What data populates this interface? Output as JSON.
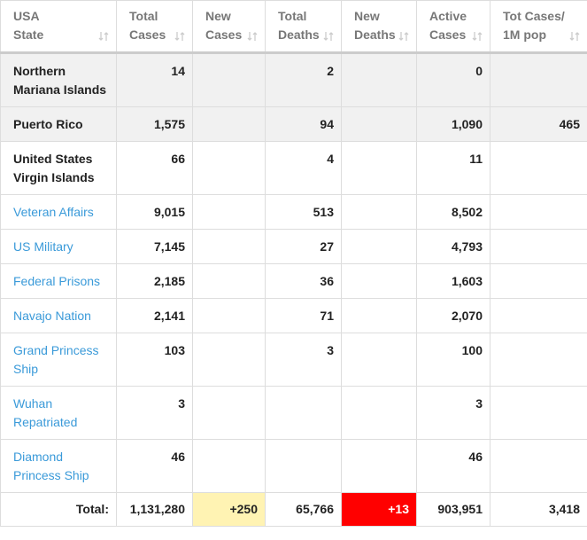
{
  "table": {
    "headers": [
      "USA\nState",
      "Total\nCases",
      "New\nCases",
      "Total\nDeaths",
      "New\nDeaths",
      "Active\nCases",
      "Tot Cases/\n1M pop"
    ],
    "header_color": "#777777",
    "border_color": "#dddddd",
    "rows": [
      {
        "cells": [
          "Northern Mariana Islands",
          "14",
          null,
          "2",
          null,
          "0",
          null
        ],
        "background": "#f1f1f1",
        "name_color": "#222222"
      },
      {
        "cells": [
          "Puerto Rico",
          "1,575",
          null,
          "94",
          null,
          "1,090",
          "465"
        ],
        "background": "#f1f1f1",
        "name_color": "#222222"
      },
      {
        "cells": [
          "United States Virgin Islands",
          "66",
          null,
          "4",
          null,
          "11",
          null
        ],
        "background": "#ffffff",
        "name_color": "#222222"
      },
      {
        "cells": [
          "Veteran Affairs",
          "9,015",
          null,
          "513",
          null,
          "8,502",
          null
        ],
        "background": "#ffffff",
        "name_color": "#3a9ad9"
      },
      {
        "cells": [
          "US Military",
          "7,145",
          null,
          "27",
          null,
          "4,793",
          null
        ],
        "background": "#ffffff",
        "name_color": "#3a9ad9"
      },
      {
        "cells": [
          "Federal Prisons",
          "2,185",
          null,
          "36",
          null,
          "1,603",
          null
        ],
        "background": "#ffffff",
        "name_color": "#3a9ad9"
      },
      {
        "cells": [
          "Navajo Nation",
          "2,141",
          null,
          "71",
          null,
          "2,070",
          null
        ],
        "background": "#ffffff",
        "name_color": "#3a9ad9"
      },
      {
        "cells": [
          "Grand Princess Ship",
          "103",
          null,
          "3",
          null,
          "100",
          null
        ],
        "background": "#ffffff",
        "name_color": "#3a9ad9"
      },
      {
        "cells": [
          "Wuhan Repatriated",
          "3",
          null,
          null,
          null,
          "3",
          null
        ],
        "background": "#ffffff",
        "name_color": "#3a9ad9"
      },
      {
        "cells": [
          "Diamond Princess Ship",
          "46",
          null,
          null,
          null,
          "46",
          null
        ],
        "background": "#ffffff",
        "name_color": "#3a9ad9"
      }
    ],
    "total": {
      "cells": [
        "Total:",
        "1,131,280",
        "+250",
        "65,766",
        "+13",
        "903,951",
        "3,418"
      ],
      "cell_backgrounds": [
        null,
        null,
        "#fff3b3",
        null,
        "#ff0000",
        null,
        null
      ],
      "cell_colors": [
        null,
        null,
        null,
        null,
        "#ffffff",
        null,
        null
      ]
    }
  }
}
